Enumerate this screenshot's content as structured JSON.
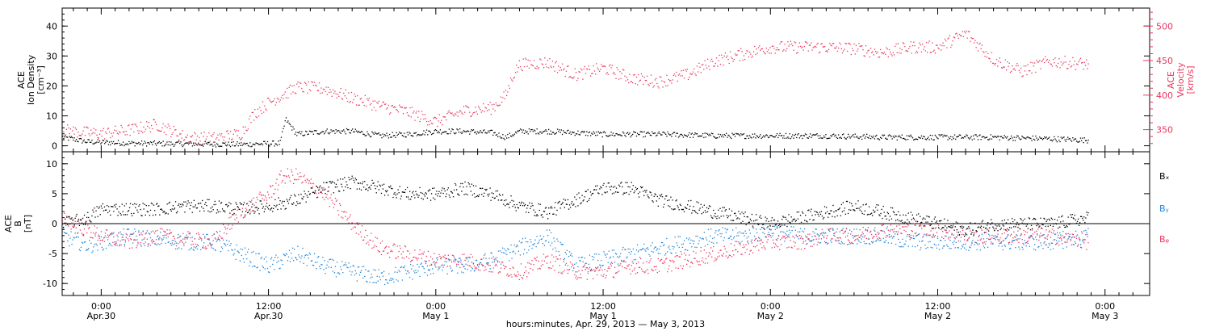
{
  "figure": {
    "xlabel": "hours:minutes, Apr. 29, 2013 — May  3, 2013",
    "x_ticks": [
      {
        "t": 0,
        "time": "0:00",
        "date": "Apr.30"
      },
      {
        "t": 12,
        "time": "12:00",
        "date": "Apr.30"
      },
      {
        "t": 24,
        "time": "0:00",
        "date": "May 1"
      },
      {
        "t": 36,
        "time": "12:00",
        "date": "May 1"
      },
      {
        "t": 48,
        "time": "0:00",
        "date": "May 2"
      },
      {
        "t": 60,
        "time": "12:00",
        "date": "May 2"
      },
      {
        "t": 72,
        "time": "0:00",
        "date": "May 3"
      }
    ],
    "xlim_hours": [
      -2.8,
      75.2
    ],
    "data_end_hour": 70.8
  },
  "chart_data": [
    {
      "type": "scatter",
      "title": "",
      "ylabel_left": [
        "ACE",
        "Ion Density",
        "[cm⁻³]"
      ],
      "ylabel_right": [
        "ACE",
        "Velocity",
        "[km/s]"
      ],
      "ylim_left": [
        -2,
        46
      ],
      "ylim_right": [
        318,
        526
      ],
      "yticks_left": [
        0,
        10,
        20,
        30,
        40
      ],
      "yticks_right": [
        350,
        400,
        450,
        500
      ],
      "colors": {
        "density": "#000000",
        "velocity": "#e8375e"
      },
      "series": [
        {
          "axis": "left",
          "color_key": "density",
          "x": [
            -2.8,
            -1,
            2,
            6,
            10,
            12.8,
            13.2,
            14,
            16,
            18,
            20,
            22,
            24,
            26,
            28,
            29,
            30,
            32,
            34,
            36,
            38,
            40,
            44,
            48,
            52,
            56,
            60,
            64,
            68,
            70.8
          ],
          "y": [
            3,
            1.5,
            1,
            0.8,
            0.6,
            1,
            9,
            4,
            5,
            5,
            3.5,
            4,
            5,
            5,
            4.5,
            3,
            5,
            5,
            4.5,
            4,
            4,
            4,
            3.5,
            3.5,
            3.5,
            3,
            3,
            3,
            2.5,
            2
          ]
        },
        {
          "axis": "right",
          "color_key": "velocity",
          "x": [
            -2.8,
            -1,
            0,
            2,
            4,
            6,
            8,
            10,
            11,
            12,
            14,
            16,
            18,
            20,
            22,
            24,
            26,
            28,
            29,
            29.5,
            30,
            32,
            34,
            36,
            38,
            40,
            42,
            44,
            46,
            48,
            50,
            52,
            54,
            56,
            58,
            60,
            62,
            64,
            66,
            68,
            70.8
          ],
          "y": [
            350,
            346,
            345,
            350,
            358,
            340,
            338,
            345,
            375,
            390,
            412,
            410,
            396,
            385,
            376,
            362,
            378,
            382,
            400,
            430,
            445,
            448,
            430,
            440,
            425,
            420,
            430,
            450,
            460,
            470,
            470,
            470,
            468,
            462,
            470,
            470,
            490,
            452,
            435,
            450,
            445
          ]
        }
      ]
    },
    {
      "type": "scatter",
      "title": "",
      "ylabel_left": [
        "ACE",
        "B",
        "[nT]"
      ],
      "ylim": [
        -12,
        12
      ],
      "yticks": [
        -10,
        -5,
        0,
        5,
        10
      ],
      "zero_line": true,
      "legend_position": "right",
      "series": [
        {
          "name": "Bₓ",
          "color": "#000000",
          "x": [
            -2.8,
            -1,
            0,
            2,
            4,
            6,
            8,
            10,
            12,
            14,
            16,
            18,
            20,
            22,
            24,
            26,
            28,
            30,
            32,
            34,
            36,
            38,
            40,
            42,
            44,
            46,
            48,
            50,
            52,
            54,
            56,
            58,
            60,
            62,
            64,
            66,
            68,
            70.8
          ],
          "y": [
            0,
            1,
            2.5,
            2.5,
            2.5,
            3,
            3,
            2.5,
            3,
            4,
            6,
            7,
            6,
            5,
            5,
            6,
            5,
            3,
            2,
            4,
            6,
            6,
            4,
            3,
            2,
            1,
            0,
            1,
            2,
            3,
            2,
            1,
            0,
            -1,
            0,
            0,
            0,
            1
          ]
        },
        {
          "name": "Bᵧ",
          "color": "#1e84d8",
          "x": [
            -2.8,
            -1,
            0,
            2,
            4,
            6,
            8,
            10,
            12,
            14,
            16,
            18,
            20,
            22,
            24,
            26,
            28,
            30,
            32,
            34,
            36,
            38,
            40,
            42,
            44,
            46,
            48,
            50,
            52,
            54,
            56,
            58,
            60,
            62,
            64,
            66,
            68,
            70.8
          ],
          "y": [
            -2,
            -3.5,
            -3,
            -2,
            -2.5,
            -3,
            -3,
            -5,
            -7,
            -5,
            -7,
            -8,
            -9,
            -8,
            -7,
            -7,
            -6,
            -4,
            -2,
            -7,
            -6,
            -5,
            -4,
            -3,
            -2,
            -2,
            -1,
            -2,
            -2,
            -2,
            -2,
            -3,
            -3,
            -3,
            -3,
            -3,
            -3,
            -2
          ]
        },
        {
          "name": "Bᵩ",
          "color": "#e8375e",
          "x": [
            -2.8,
            -1,
            0,
            2,
            4,
            6,
            8,
            10,
            12,
            13,
            14,
            16,
            18,
            20,
            22,
            24,
            26,
            28,
            30,
            32,
            34,
            36,
            38,
            40,
            42,
            44,
            46,
            48,
            50,
            52,
            54,
            56,
            58,
            60,
            62,
            64,
            66,
            68,
            70.8
          ],
          "y": [
            1,
            -1,
            -2,
            -3,
            -2,
            -2.5,
            -3,
            2,
            5,
            8,
            8,
            5,
            0,
            -4,
            -5,
            -6,
            -6,
            -7,
            -8,
            -6,
            -8,
            -8,
            -7,
            -7,
            -6,
            -5,
            -4,
            -3,
            -3,
            -2,
            -2,
            -1,
            -1,
            -1,
            -2,
            -2,
            -2,
            -2,
            -3
          ]
        }
      ],
      "legend": [
        "Bₓ",
        "Bᵧ",
        "Bᵩ"
      ]
    }
  ]
}
